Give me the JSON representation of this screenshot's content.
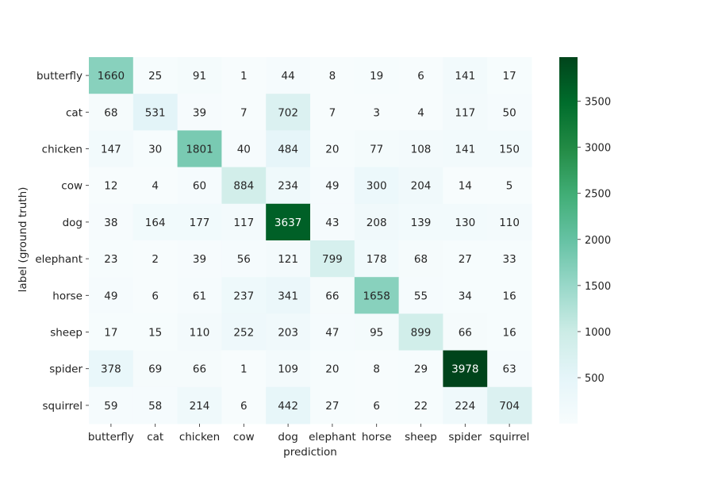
{
  "chart_data": {
    "type": "heatmap",
    "title": "",
    "xlabel": "prediction",
    "ylabel": "label (ground truth)",
    "x_categories": [
      "butterfly",
      "cat",
      "chicken",
      "cow",
      "dog",
      "elephant",
      "horse",
      "sheep",
      "spider",
      "squirrel"
    ],
    "y_categories": [
      "butterfly",
      "cat",
      "chicken",
      "cow",
      "dog",
      "elephant",
      "horse",
      "sheep",
      "spider",
      "squirrel"
    ],
    "matrix": [
      [
        1660,
        25,
        91,
        1,
        44,
        8,
        19,
        6,
        141,
        17
      ],
      [
        68,
        531,
        39,
        7,
        702,
        7,
        3,
        4,
        117,
        50
      ],
      [
        147,
        30,
        1801,
        40,
        484,
        20,
        77,
        108,
        141,
        150
      ],
      [
        12,
        4,
        60,
        884,
        234,
        49,
        300,
        204,
        14,
        5
      ],
      [
        38,
        164,
        177,
        117,
        3637,
        43,
        208,
        139,
        130,
        110
      ],
      [
        23,
        2,
        39,
        56,
        121,
        799,
        178,
        68,
        27,
        33
      ],
      [
        49,
        6,
        61,
        237,
        341,
        66,
        1658,
        55,
        34,
        16
      ],
      [
        17,
        15,
        110,
        252,
        203,
        47,
        95,
        899,
        66,
        16
      ],
      [
        378,
        69,
        66,
        1,
        109,
        20,
        8,
        29,
        3978,
        63
      ],
      [
        59,
        58,
        214,
        6,
        442,
        27,
        6,
        22,
        224,
        704
      ]
    ],
    "colormap": "BuGn",
    "vmin": 1,
    "vmax": 3978,
    "colorbar_ticks": [
      500,
      1000,
      1500,
      2000,
      2500,
      3000,
      3500
    ],
    "grid": false,
    "legend": "colorbar-right"
  }
}
